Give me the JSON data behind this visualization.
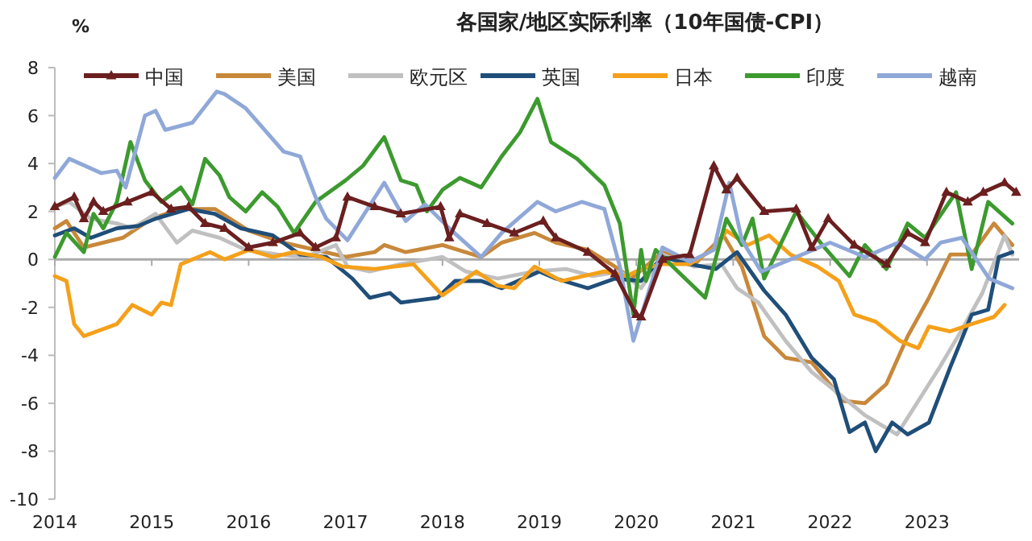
{
  "chart_data": {
    "type": "line",
    "title": "各国家/地区实际利率（10年国债-CPI）",
    "ylabel": "%",
    "xlim": [
      2014,
      2023.95
    ],
    "xticks": [
      2014,
      2015,
      2016,
      2017,
      2018,
      2019,
      2020,
      2021,
      2022,
      2023
    ],
    "ylim": [
      -10,
      8
    ],
    "yticks": [
      -10,
      -8,
      -6,
      -4,
      -2,
      0,
      2,
      4,
      6,
      8
    ],
    "legend": "top",
    "line_style": "solid",
    "series": [
      {
        "name": "中国",
        "color": "#6b1f1f",
        "marker": "triangle",
        "x": [
          2014.0,
          2014.2,
          2014.3,
          2014.4,
          2014.5,
          2014.75,
          2015.0,
          2015.2,
          2015.38,
          2015.55,
          2015.75,
          2016.0,
          2016.25,
          2016.53,
          2016.69,
          2016.9,
          2017.02,
          2017.3,
          2017.57,
          2017.98,
          2018.07,
          2018.18,
          2018.46,
          2018.74,
          2019.04,
          2019.17,
          2019.5,
          2019.78,
          2020.0,
          2020.05,
          2020.27,
          2020.55,
          2020.8,
          2020.93,
          2021.04,
          2021.32,
          2021.65,
          2021.81,
          2021.98,
          2022.25,
          2022.58,
          2022.8,
          2022.98,
          2023.2,
          2023.42,
          2023.58,
          2023.8,
          2023.92
        ],
        "values": [
          2.2,
          2.6,
          1.7,
          2.4,
          2.0,
          2.4,
          2.8,
          2.1,
          2.2,
          1.5,
          1.3,
          0.5,
          0.7,
          1.1,
          0.5,
          0.9,
          2.6,
          2.2,
          1.9,
          2.2,
          0.9,
          1.9,
          1.5,
          1.1,
          1.6,
          0.9,
          0.3,
          -0.6,
          -2.3,
          -2.4,
          0.0,
          0.2,
          3.9,
          2.9,
          3.4,
          2.0,
          2.1,
          0.5,
          1.7,
          0.6,
          -0.2,
          1.1,
          0.7,
          2.8,
          2.4,
          2.8,
          3.2,
          2.8
        ]
      },
      {
        "name": "美国",
        "color": "#c8883a",
        "x": [
          2014.0,
          2014.12,
          2014.3,
          2014.7,
          2015.0,
          2015.3,
          2015.65,
          2016.0,
          2016.36,
          2016.69,
          2017.0,
          2017.3,
          2017.4,
          2017.62,
          2018.0,
          2018.4,
          2018.61,
          2018.95,
          2019.17,
          2019.5,
          2019.78,
          2019.95,
          2020.27,
          2020.6,
          2020.9,
          2021.09,
          2021.32,
          2021.54,
          2021.81,
          2022.14,
          2022.36,
          2022.58,
          2022.8,
          2023.02,
          2023.24,
          2023.46,
          2023.69,
          2023.88
        ],
        "values": [
          1.3,
          1.6,
          0.5,
          0.9,
          1.7,
          2.1,
          2.1,
          1.2,
          0.7,
          0.4,
          0.1,
          0.3,
          0.6,
          0.3,
          0.6,
          0.1,
          0.7,
          1.1,
          0.7,
          0.4,
          -0.3,
          -0.8,
          0.3,
          -0.2,
          1.0,
          -0.3,
          -3.2,
          -4.1,
          -4.3,
          -5.9,
          -6.0,
          -5.2,
          -3.2,
          -1.6,
          0.2,
          0.2,
          1.5,
          0.6
        ]
      },
      {
        "name": "欧元区",
        "color": "#c0c0c0",
        "x": [
          2014.0,
          2014.15,
          2014.37,
          2014.64,
          2014.8,
          2015.04,
          2015.26,
          2015.42,
          2015.7,
          2015.97,
          2016.3,
          2016.58,
          2016.9,
          2017.02,
          2017.25,
          2017.57,
          2018.0,
          2018.24,
          2018.57,
          2018.95,
          2019.28,
          2019.55,
          2019.83,
          2019.9,
          2020.05,
          2020.27,
          2020.6,
          2020.88,
          2021.04,
          2021.26,
          2021.54,
          2021.81,
          2022.09,
          2022.36,
          2022.69,
          2022.91,
          2023.13,
          2023.35,
          2023.57,
          2023.8,
          2023.88
        ],
        "values": [
          2.2,
          2.4,
          1.7,
          1.5,
          1.3,
          1.9,
          0.7,
          1.2,
          0.9,
          0.4,
          0.2,
          0.1,
          0.6,
          -0.3,
          -0.5,
          -0.2,
          0.1,
          -0.5,
          -0.8,
          -0.5,
          -0.4,
          -0.7,
          -0.5,
          -0.7,
          -1.2,
          0.2,
          -0.3,
          -0.2,
          -1.2,
          -1.8,
          -3.4,
          -4.7,
          -5.6,
          -6.5,
          -7.3,
          -5.9,
          -4.5,
          -3.0,
          -1.4,
          1.0,
          0.2
        ]
      },
      {
        "name": "英国",
        "color": "#1f4e79",
        "x": [
          2014.0,
          2014.2,
          2014.37,
          2014.64,
          2014.86,
          2015.04,
          2015.38,
          2015.65,
          2015.92,
          2016.25,
          2016.53,
          2016.8,
          2017.07,
          2017.25,
          2017.46,
          2017.57,
          2017.95,
          2018.13,
          2018.4,
          2018.61,
          2019.0,
          2019.17,
          2019.5,
          2019.78,
          2020.05,
          2020.27,
          2020.55,
          2020.82,
          2021.04,
          2021.32,
          2021.54,
          2021.81,
          2022.04,
          2022.2,
          2022.36,
          2022.47,
          2022.64,
          2022.8,
          2023.02,
          2023.24,
          2023.46,
          2023.63,
          2023.74,
          2023.88
        ],
        "values": [
          1.0,
          1.3,
          0.9,
          1.3,
          1.4,
          1.7,
          2.1,
          1.9,
          1.3,
          1.0,
          0.2,
          0.1,
          -0.8,
          -1.6,
          -1.4,
          -1.8,
          -1.6,
          -0.9,
          -0.9,
          -1.2,
          -0.5,
          -0.8,
          -1.2,
          -0.8,
          -0.9,
          0.1,
          -0.2,
          -0.4,
          0.3,
          -1.3,
          -2.3,
          -4.1,
          -5.0,
          -7.2,
          -6.8,
          -8.0,
          -6.8,
          -7.3,
          -6.8,
          -4.5,
          -2.3,
          -2.1,
          0.1,
          0.3
        ]
      },
      {
        "name": "日本",
        "color": "#f5a01a",
        "x": [
          2014.0,
          2014.12,
          2014.2,
          2014.3,
          2014.64,
          2014.8,
          2015.0,
          2015.1,
          2015.2,
          2015.3,
          2015.6,
          2015.75,
          2016.0,
          2016.25,
          2016.47,
          2016.75,
          2016.97,
          2017.3,
          2017.7,
          2018.0,
          2018.35,
          2018.57,
          2018.74,
          2018.95,
          2019.23,
          2019.67,
          2019.9,
          2020.05,
          2020.27,
          2020.55,
          2020.82,
          2020.93,
          2021.15,
          2021.37,
          2021.59,
          2021.87,
          2022.09,
          2022.25,
          2022.47,
          2022.72,
          2022.91,
          2023.02,
          2023.24,
          2023.46,
          2023.69,
          2023.8
        ],
        "values": [
          -0.7,
          -0.9,
          -2.7,
          -3.2,
          -2.7,
          -1.9,
          -2.3,
          -1.8,
          -1.9,
          -0.2,
          0.3,
          0.0,
          0.4,
          0.1,
          0.3,
          0.1,
          -0.3,
          -0.4,
          -0.2,
          -1.5,
          -0.5,
          -1.1,
          -1.2,
          -0.3,
          -0.9,
          -0.5,
          -0.7,
          -0.4,
          -0.2,
          -0.2,
          0.5,
          1.2,
          0.6,
          1.0,
          0.2,
          -0.3,
          -0.9,
          -2.3,
          -2.6,
          -3.4,
          -3.7,
          -2.8,
          -3.0,
          -2.7,
          -2.4,
          -1.9
        ]
      },
      {
        "name": "印度",
        "color": "#3c9a2e",
        "x": [
          2014.0,
          2014.12,
          2014.3,
          2014.4,
          2014.5,
          2014.64,
          2014.78,
          2014.93,
          2015.1,
          2015.3,
          2015.42,
          2015.55,
          2015.7,
          2015.8,
          2015.97,
          2016.14,
          2016.3,
          2016.47,
          2016.69,
          2017.0,
          2017.18,
          2017.4,
          2017.57,
          2017.73,
          2017.84,
          2018.0,
          2018.18,
          2018.4,
          2018.61,
          2018.8,
          2018.98,
          2019.12,
          2019.39,
          2019.67,
          2019.83,
          2019.97,
          2020.05,
          2020.1,
          2020.2,
          2020.43,
          2020.71,
          2020.93,
          2021.09,
          2021.2,
          2021.32,
          2021.65,
          2021.92,
          2022.2,
          2022.36,
          2022.58,
          2022.8,
          2022.98,
          2023.3,
          2023.46,
          2023.63,
          2023.88
        ],
        "values": [
          0.1,
          1.1,
          0.3,
          1.9,
          1.3,
          2.4,
          4.9,
          3.3,
          2.4,
          3.0,
          2.3,
          4.2,
          3.5,
          2.6,
          2.0,
          2.8,
          2.2,
          1.1,
          2.4,
          3.3,
          3.9,
          5.1,
          3.3,
          3.1,
          2.0,
          2.9,
          3.4,
          3.0,
          4.3,
          5.3,
          6.7,
          4.9,
          4.2,
          3.1,
          1.5,
          -2.3,
          0.4,
          -0.9,
          0.4,
          -0.5,
          -1.6,
          1.7,
          0.6,
          1.7,
          -0.8,
          2.0,
          0.6,
          -0.7,
          0.6,
          -0.4,
          1.5,
          0.9,
          2.8,
          -0.4,
          2.4,
          1.5
        ]
      },
      {
        "name": "越南",
        "color": "#8fa8d8",
        "x": [
          2014.0,
          2014.15,
          2014.48,
          2014.64,
          2014.73,
          2014.93,
          2015.04,
          2015.14,
          2015.42,
          2015.67,
          2015.75,
          2015.97,
          2016.36,
          2016.53,
          2016.69,
          2016.8,
          2017.02,
          2017.4,
          2017.62,
          2017.82,
          2018.07,
          2018.4,
          2018.61,
          2018.98,
          2019.17,
          2019.44,
          2019.67,
          2019.83,
          2019.97,
          2020.27,
          2020.55,
          2020.8,
          2020.96,
          2021.09,
          2021.29,
          2021.65,
          2022.0,
          2022.36,
          2022.7,
          2022.98,
          2023.14,
          2023.36,
          2023.64,
          2023.88
        ],
        "values": [
          3.4,
          4.2,
          3.6,
          3.7,
          3.0,
          6.0,
          6.2,
          5.4,
          5.7,
          7.0,
          6.9,
          6.3,
          4.5,
          4.3,
          2.6,
          1.7,
          0.8,
          3.2,
          1.6,
          2.3,
          1.3,
          0.1,
          1.1,
          2.4,
          2.0,
          2.4,
          2.1,
          -0.3,
          -3.4,
          0.5,
          -0.1,
          0.4,
          3.2,
          0.8,
          -0.5,
          0.1,
          0.7,
          0.1,
          0.7,
          0.0,
          0.7,
          0.9,
          -0.8,
          -1.2
        ]
      }
    ]
  }
}
